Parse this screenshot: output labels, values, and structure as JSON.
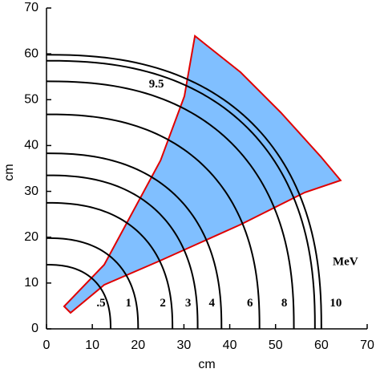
{
  "chart_data": {
    "type": "contour",
    "x_label": "cm",
    "y_label": "cm",
    "unit_label": "MeV",
    "xlim": [
      0,
      70
    ],
    "ylim": [
      0,
      70
    ],
    "xticks": [
      0,
      10,
      20,
      30,
      40,
      50,
      60,
      70
    ],
    "yticks": [
      0,
      10,
      20,
      30,
      40,
      50,
      60,
      70
    ],
    "line_color": "#000000",
    "series": [
      {
        "name": ".5",
        "x_intercept": 14,
        "y_intercept": 14
      },
      {
        "name": "1",
        "x_intercept": 20,
        "y_intercept": 19.8
      },
      {
        "name": "2",
        "x_intercept": 27.5,
        "y_intercept": 27.5
      },
      {
        "name": "3",
        "x_intercept": 33,
        "y_intercept": 33.5
      },
      {
        "name": "4",
        "x_intercept": 38.2,
        "y_intercept": 38.3
      },
      {
        "name": "6",
        "x_intercept": 46.5,
        "y_intercept": 46.8
      },
      {
        "name": "8",
        "x_intercept": 54,
        "y_intercept": 54
      },
      {
        "name": "9.5",
        "x_intercept": 58.6,
        "y_intercept": 58.5
      },
      {
        "name": "10",
        "x_intercept": 60,
        "y_intercept": 59.8
      }
    ],
    "region": {
      "fill": "#80bfff",
      "edge": "#e00000",
      "x": [
        3.85,
        12.6,
        24.9,
        30.1,
        32.4,
        42.35,
        51.1,
        59.85,
        64.2,
        56.35,
        42.35,
        24.85,
        12.6,
        5.25
      ],
      "y": [
        4.9,
        14,
        36.75,
        50.75,
        63.9,
        56,
        47.25,
        37.6,
        32.4,
        29.75,
        22.75,
        14.9,
        9.6,
        3.5
      ]
    }
  }
}
